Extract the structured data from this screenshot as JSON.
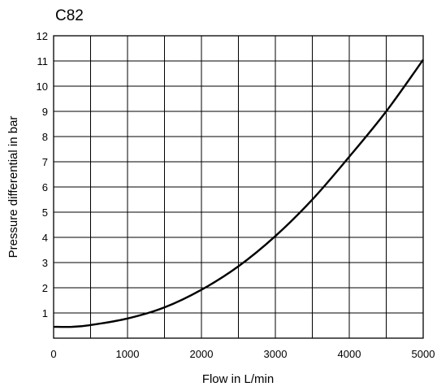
{
  "chart_data": {
    "type": "line",
    "title": "C82",
    "xlabel": "Flow in L/min",
    "ylabel": "Pressure differential in bar",
    "xlim": [
      0,
      5000
    ],
    "ylim": [
      0,
      12
    ],
    "x_ticks": [
      0,
      1000,
      2000,
      3000,
      4000,
      5000
    ],
    "y_ticks": [
      1,
      2,
      3,
      4,
      5,
      6,
      7,
      8,
      9,
      10,
      11,
      12
    ],
    "grid": true,
    "grid_x_step": 500,
    "grid_y_step": 1,
    "line_color": "#000000",
    "series": [
      {
        "x": [
          0,
          250,
          500,
          1000,
          1500,
          2000,
          2500,
          3000,
          3500,
          4000,
          4500,
          5000
        ],
        "values": [
          0.45,
          0.45,
          0.52,
          0.78,
          1.22,
          1.92,
          2.85,
          4.05,
          5.5,
          7.2,
          9.0,
          11.05
        ]
      }
    ]
  }
}
